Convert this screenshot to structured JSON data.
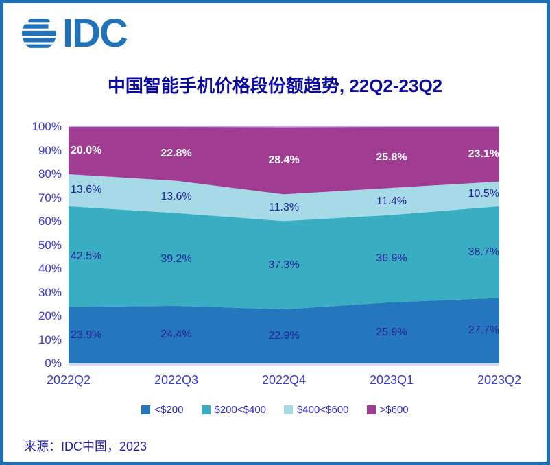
{
  "brand": {
    "logo_text": "IDC",
    "globe_icon": "globe-icon"
  },
  "title": "中国智能手机价格段份额趋势, 22Q2-23Q2",
  "source": "来源：IDC中国，2023",
  "colors": {
    "brand": "#2173B9",
    "frame_border": "#1E6FB4",
    "background": "#FFFFFF",
    "title_text": "#0A0AA2",
    "axis_text": "#3838D2",
    "legend_text": "#2B2BC8",
    "source_text": "#1C1CAE",
    "data_label_navy": "#1F1F96",
    "data_label_white": "#FFFFFF",
    "plot_top_line": "#AEB8E8",
    "plot_bottom_line": "#CDC6EF"
  },
  "chart_data": {
    "type": "area",
    "stacked": true,
    "unit": "%",
    "title": "中国智能手机价格段份额趋势, 22Q2-23Q2",
    "categories": [
      "2022Q2",
      "2022Q3",
      "2022Q4",
      "2023Q1",
      "2023Q2"
    ],
    "series": [
      {
        "name": "<$200",
        "color": "#2577BD",
        "values": [
          23.9,
          24.4,
          22.9,
          25.9,
          27.7
        ],
        "label_color": "#1F1F96",
        "label_bold": false
      },
      {
        "name": "$200<$400",
        "color": "#39ADC2",
        "values": [
          42.5,
          39.2,
          37.3,
          36.9,
          38.7
        ],
        "label_color": "#1F1F96",
        "label_bold": false
      },
      {
        "name": "$400<$600",
        "color": "#A5DAE6",
        "values": [
          13.6,
          13.6,
          11.3,
          11.4,
          10.5
        ],
        "label_color": "#1F1F96",
        "label_bold": false
      },
      {
        "name": ">$600",
        "color": "#A03C92",
        "values": [
          20.0,
          22.8,
          28.4,
          25.8,
          23.1
        ],
        "label_color": "#FFFFFF",
        "label_bold": true
      }
    ],
    "y_ticks": [
      "100%",
      "90%",
      "80%",
      "70%",
      "60%",
      "50%",
      "40%",
      "30%",
      "20%",
      "10%",
      "0%"
    ],
    "ylim": [
      0,
      100
    ],
    "grid": false,
    "legend_position": "bottom"
  }
}
